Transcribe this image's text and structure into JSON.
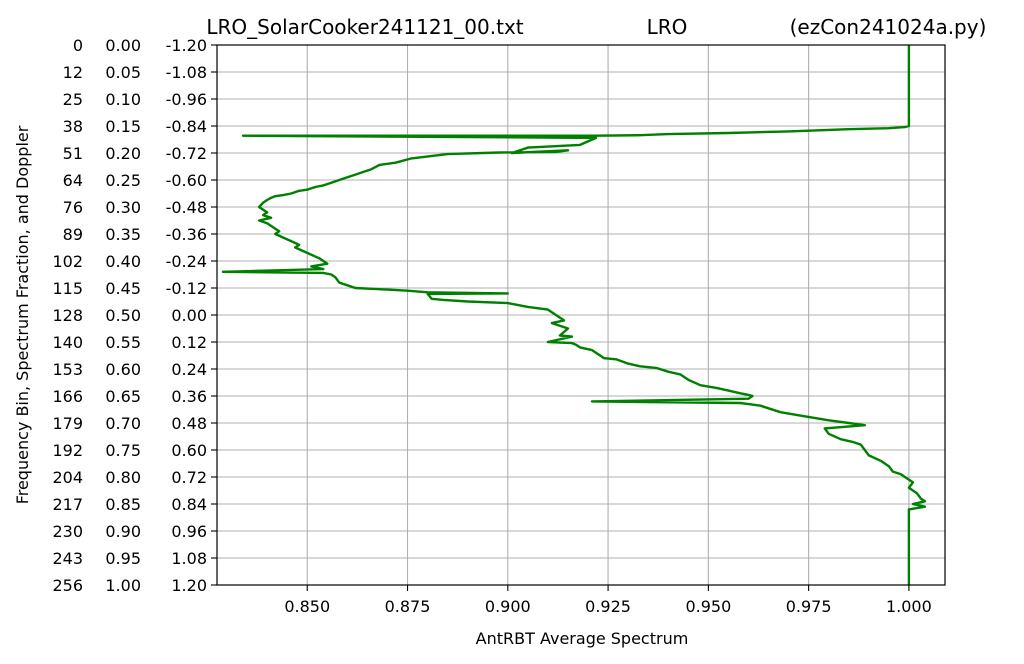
{
  "title": {
    "left": "LRO_SolarCooker241121_00.txt",
    "center": "LRO",
    "right": "(ezCon241024a.py)"
  },
  "xlabel": "AntRBT Average Spectrum",
  "ylabel": "Frequency Bin, Spectrum Fraction, and Doppler",
  "chart_data": {
    "type": "line",
    "title": "LRO_SolarCooker241121_00.txt LRO (ezCon241024a.py)",
    "xlabel": "AntRBT Average Spectrum",
    "ylabel": "Frequency Bin, Spectrum Fraction, and Doppler",
    "xlim": [
      0.8275,
      1.009
    ],
    "ylim": [
      1.0,
      0.0
    ],
    "y_inverted": true,
    "grid": true,
    "x_ticks": [
      "0.850",
      "0.875",
      "0.900",
      "0.925",
      "0.950",
      "0.975",
      "1.000"
    ],
    "x_tick_values": [
      0.85,
      0.875,
      0.9,
      0.925,
      0.95,
      0.975,
      1.0
    ],
    "y_ticks": [
      {
        "fraction": 0.0,
        "bin": "0",
        "frac": "0.00",
        "doppler": "-1.20"
      },
      {
        "fraction": 0.05,
        "bin": "12",
        "frac": "0.05",
        "doppler": "-1.08"
      },
      {
        "fraction": 0.1,
        "bin": "25",
        "frac": "0.10",
        "doppler": "-0.96"
      },
      {
        "fraction": 0.15,
        "bin": "38",
        "frac": "0.15",
        "doppler": "-0.84"
      },
      {
        "fraction": 0.2,
        "bin": "51",
        "frac": "0.20",
        "doppler": "-0.72"
      },
      {
        "fraction": 0.25,
        "bin": "64",
        "frac": "0.25",
        "doppler": "-0.60"
      },
      {
        "fraction": 0.3,
        "bin": "76",
        "frac": "0.30",
        "doppler": "-0.48"
      },
      {
        "fraction": 0.35,
        "bin": "89",
        "frac": "0.35",
        "doppler": "-0.36"
      },
      {
        "fraction": 0.4,
        "bin": "102",
        "frac": "0.40",
        "doppler": "-0.24"
      },
      {
        "fraction": 0.45,
        "bin": "115",
        "frac": "0.45",
        "doppler": "-0.12"
      },
      {
        "fraction": 0.5,
        "bin": "128",
        "frac": "0.50",
        "doppler": "0.00"
      },
      {
        "fraction": 0.55,
        "bin": "140",
        "frac": "0.55",
        "doppler": "0.12"
      },
      {
        "fraction": 0.6,
        "bin": "153",
        "frac": "0.60",
        "doppler": "0.24"
      },
      {
        "fraction": 0.65,
        "bin": "166",
        "frac": "0.65",
        "doppler": "0.36"
      },
      {
        "fraction": 0.7,
        "bin": "179",
        "frac": "0.70",
        "doppler": "0.48"
      },
      {
        "fraction": 0.75,
        "bin": "192",
        "frac": "0.75",
        "doppler": "0.60"
      },
      {
        "fraction": 0.8,
        "bin": "204",
        "frac": "0.80",
        "doppler": "0.72"
      },
      {
        "fraction": 0.85,
        "bin": "217",
        "frac": "0.85",
        "doppler": "0.84"
      },
      {
        "fraction": 0.9,
        "bin": "230",
        "frac": "0.90",
        "doppler": "0.96"
      },
      {
        "fraction": 0.95,
        "bin": "243",
        "frac": "0.95",
        "doppler": "1.08"
      },
      {
        "fraction": 1.0,
        "bin": "256",
        "frac": "1.00",
        "doppler": "1.20"
      }
    ],
    "series": [
      {
        "color": "#008000",
        "x": [
          1.0,
          1.0,
          0.999,
          0.995,
          0.985,
          0.97,
          0.955,
          0.94,
          0.933,
          0.922,
          0.9,
          0.87,
          0.834,
          0.922,
          0.918,
          0.905,
          0.901,
          0.915,
          0.912,
          0.898,
          0.885,
          0.876,
          0.872,
          0.868,
          0.866,
          0.864,
          0.862,
          0.86,
          0.858,
          0.856,
          0.854,
          0.852,
          0.85,
          0.848,
          0.846,
          0.844,
          0.842,
          0.841,
          0.84,
          0.839,
          0.838,
          0.84,
          0.839,
          0.841,
          0.838,
          0.84,
          0.842,
          0.843,
          0.842,
          0.845,
          0.848,
          0.847,
          0.85,
          0.853,
          0.855,
          0.851,
          0.854,
          0.829,
          0.854,
          0.856,
          0.857,
          0.858,
          0.86,
          0.862,
          0.87,
          0.875,
          0.88,
          0.9,
          0.88,
          0.881,
          0.884,
          0.89,
          0.9,
          0.905,
          0.91,
          0.914,
          0.911,
          0.915,
          0.913,
          0.916,
          0.91,
          0.916,
          0.917,
          0.918,
          0.921,
          0.923,
          0.924,
          0.927,
          0.93,
          0.933,
          0.937,
          0.94,
          0.943,
          0.945,
          0.948,
          0.952,
          0.955,
          0.958,
          0.96,
          0.961,
          0.96,
          0.921,
          0.958,
          0.96,
          0.963,
          0.968,
          0.972,
          0.98,
          0.985,
          0.989,
          0.979,
          0.98,
          0.983,
          0.986,
          0.988,
          0.99,
          0.993,
          0.995,
          0.996,
          0.998,
          0.999,
          1.001,
          1.0,
          1.002,
          1.003,
          1.004,
          1.001,
          1.004,
          1.0,
          1.0,
          1.0
        ],
        "y": [
          0.0,
          0.15,
          0.152,
          0.154,
          0.156,
          0.16,
          0.163,
          0.165,
          0.167,
          0.168,
          0.168,
          0.168,
          0.168,
          0.172,
          0.185,
          0.19,
          0.2,
          0.195,
          0.198,
          0.199,
          0.202,
          0.21,
          0.218,
          0.222,
          0.23,
          0.235,
          0.24,
          0.245,
          0.25,
          0.255,
          0.26,
          0.263,
          0.268,
          0.27,
          0.275,
          0.278,
          0.28,
          0.283,
          0.287,
          0.292,
          0.3,
          0.31,
          0.315,
          0.32,
          0.325,
          0.33,
          0.34,
          0.345,
          0.35,
          0.36,
          0.37,
          0.375,
          0.385,
          0.395,
          0.405,
          0.41,
          0.415,
          0.42,
          0.422,
          0.425,
          0.43,
          0.44,
          0.445,
          0.45,
          0.453,
          0.455,
          0.458,
          0.46,
          0.461,
          0.47,
          0.472,
          0.475,
          0.478,
          0.485,
          0.49,
          0.51,
          0.515,
          0.525,
          0.538,
          0.54,
          0.55,
          0.552,
          0.555,
          0.56,
          0.565,
          0.575,
          0.58,
          0.582,
          0.59,
          0.595,
          0.598,
          0.605,
          0.61,
          0.62,
          0.63,
          0.635,
          0.64,
          0.645,
          0.648,
          0.65,
          0.655,
          0.66,
          0.663,
          0.665,
          0.668,
          0.68,
          0.685,
          0.695,
          0.7,
          0.704,
          0.71,
          0.72,
          0.73,
          0.735,
          0.74,
          0.76,
          0.77,
          0.78,
          0.79,
          0.795,
          0.8,
          0.81,
          0.82,
          0.83,
          0.84,
          0.845,
          0.85,
          0.855,
          0.86,
          0.88,
          1.0
        ]
      }
    ]
  }
}
